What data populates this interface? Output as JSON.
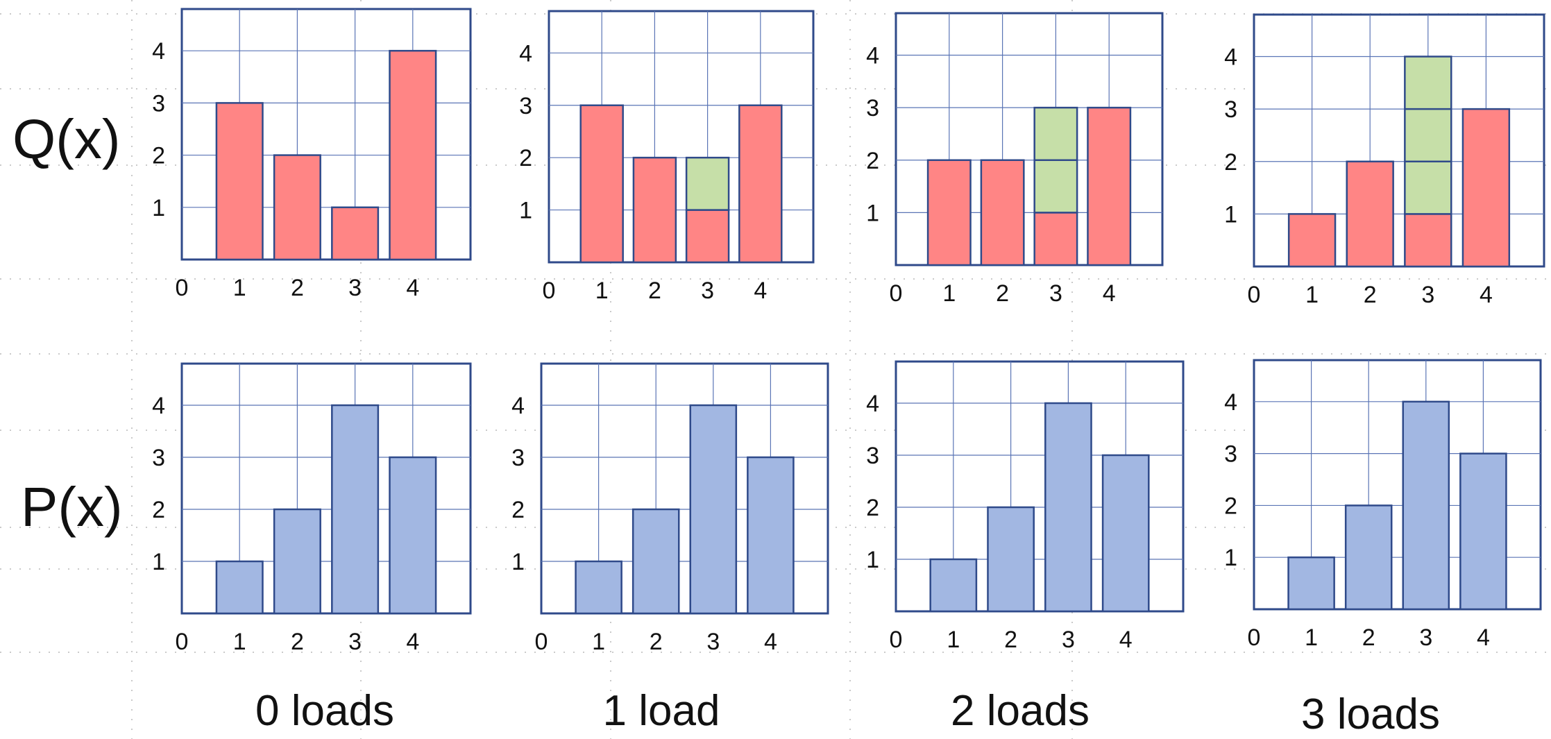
{
  "row_labels": {
    "q": "Q(x)",
    "p": "P(x)"
  },
  "column_labels": [
    "0 loads",
    "1 load",
    "2 loads",
    "3 loads"
  ],
  "colors": {
    "frame": "#2f4a8a",
    "grid": "#5a74b5",
    "q_fill": "#ff8585",
    "q_stroke": "#2f4a8a",
    "q_load_fill": "#c6dfa8",
    "p_fill": "#a2b7e2",
    "p_stroke": "#2f4a8a"
  },
  "chart_data": [
    {
      "type": "bar",
      "row": "Q(x)",
      "column": "0 loads",
      "x_ticks": [
        "0",
        "1",
        "2",
        "3",
        "4"
      ],
      "y_ticks": [
        "1",
        "2",
        "3",
        "4"
      ],
      "xlim": [
        0,
        5
      ],
      "ylim": [
        0,
        4.8
      ],
      "categories": [
        1,
        2,
        3,
        4
      ],
      "values": [
        3,
        2,
        1,
        4
      ],
      "loaded": [
        0,
        0,
        0,
        0
      ]
    },
    {
      "type": "bar",
      "row": "Q(x)",
      "column": "1 load",
      "x_ticks": [
        "0",
        "1",
        "2",
        "3",
        "4"
      ],
      "y_ticks": [
        "1",
        "2",
        "3",
        "4"
      ],
      "xlim": [
        0,
        5
      ],
      "ylim": [
        0,
        4.8
      ],
      "categories": [
        1,
        2,
        3,
        4
      ],
      "values": [
        3,
        2,
        1,
        3
      ],
      "loaded": [
        0,
        0,
        1,
        0
      ]
    },
    {
      "type": "bar",
      "row": "Q(x)",
      "column": "2 loads",
      "x_ticks": [
        "0",
        "1",
        "2",
        "3",
        "4"
      ],
      "y_ticks": [
        "1",
        "2",
        "3",
        "4"
      ],
      "xlim": [
        0,
        5
      ],
      "ylim": [
        0,
        4.8
      ],
      "categories": [
        1,
        2,
        3,
        4
      ],
      "values": [
        2,
        2,
        1,
        3
      ],
      "loaded": [
        0,
        0,
        2,
        0
      ]
    },
    {
      "type": "bar",
      "row": "Q(x)",
      "column": "3 loads",
      "x_ticks": [
        "0",
        "1",
        "2",
        "3",
        "4"
      ],
      "y_ticks": [
        "1",
        "2",
        "3",
        "4"
      ],
      "xlim": [
        0,
        5
      ],
      "ylim": [
        0,
        4.8
      ],
      "categories": [
        1,
        2,
        3,
        4
      ],
      "values": [
        1,
        2,
        1,
        3
      ],
      "loaded": [
        0,
        0,
        3,
        0
      ]
    },
    {
      "type": "bar",
      "row": "P(x)",
      "column": "0 loads",
      "x_ticks": [
        "0",
        "1",
        "2",
        "3",
        "4"
      ],
      "y_ticks": [
        "1",
        "2",
        "3",
        "4"
      ],
      "xlim": [
        0,
        5
      ],
      "ylim": [
        0,
        4.8
      ],
      "categories": [
        1,
        2,
        3,
        4
      ],
      "values": [
        1,
        2,
        4,
        3
      ]
    },
    {
      "type": "bar",
      "row": "P(x)",
      "column": "1 load",
      "x_ticks": [
        "0",
        "1",
        "2",
        "3",
        "4"
      ],
      "y_ticks": [
        "1",
        "2",
        "3",
        "4"
      ],
      "xlim": [
        0,
        5
      ],
      "ylim": [
        0,
        4.8
      ],
      "categories": [
        1,
        2,
        3,
        4
      ],
      "values": [
        1,
        2,
        4,
        3
      ]
    },
    {
      "type": "bar",
      "row": "P(x)",
      "column": "2 loads",
      "x_ticks": [
        "0",
        "1",
        "2",
        "3",
        "4"
      ],
      "y_ticks": [
        "1",
        "2",
        "3",
        "4"
      ],
      "xlim": [
        0,
        5
      ],
      "ylim": [
        0,
        4.8
      ],
      "categories": [
        1,
        2,
        3,
        4
      ],
      "values": [
        1,
        2,
        4,
        3
      ]
    },
    {
      "type": "bar",
      "row": "P(x)",
      "column": "3 loads",
      "x_ticks": [
        "0",
        "1",
        "2",
        "3",
        "4"
      ],
      "y_ticks": [
        "1",
        "2",
        "3",
        "4"
      ],
      "xlim": [
        0,
        5
      ],
      "ylim": [
        0,
        4.8
      ],
      "categories": [
        1,
        2,
        3,
        4
      ],
      "values": [
        1,
        2,
        4,
        3
      ]
    }
  ]
}
